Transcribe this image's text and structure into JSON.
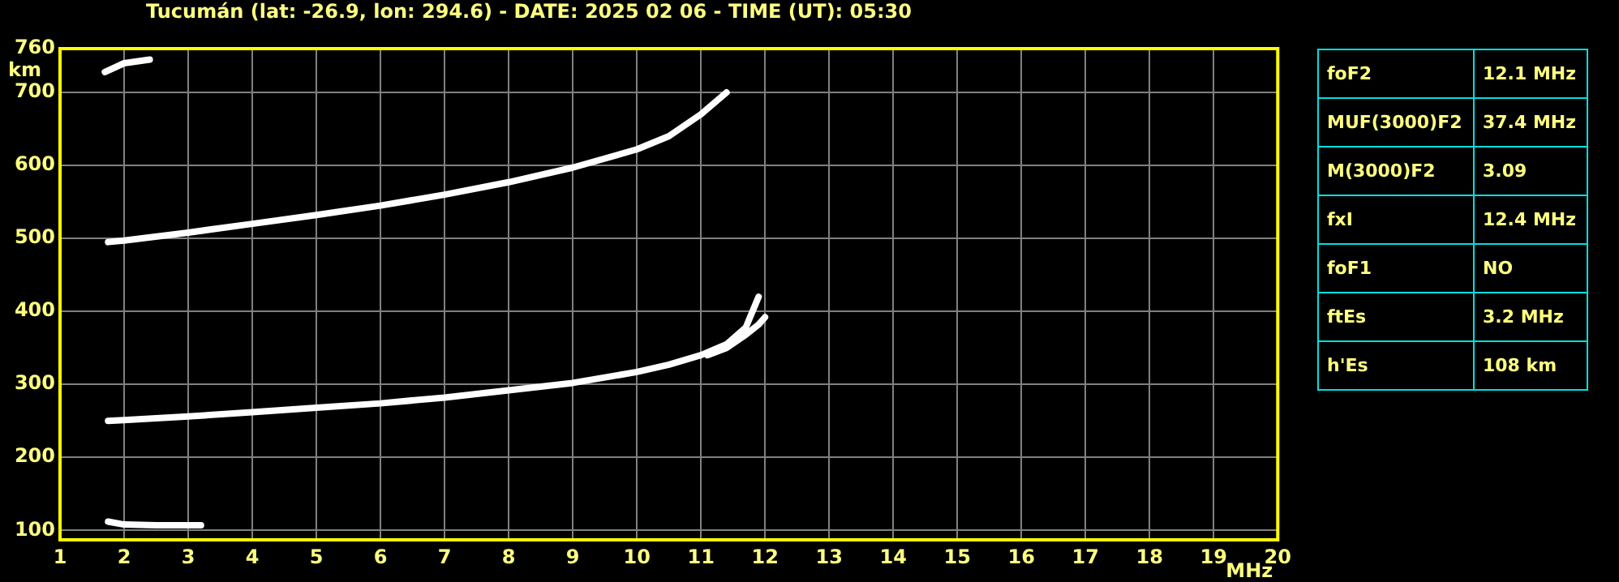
{
  "chart_data": [
    {
      "type": "line",
      "title": "Tucumán (lat: -26.9, lon: 294.6) - DATE: 2025 02 06 - TIME (UT): 05:30",
      "xlabel": "MHz",
      "ylabel": "km",
      "xlim": [
        1,
        20
      ],
      "xticks": [
        1,
        2,
        3,
        4,
        5,
        6,
        7,
        8,
        9,
        10,
        11,
        12,
        13,
        14,
        15,
        16,
        17,
        18,
        19,
        20
      ],
      "ylim": [
        87,
        760
      ],
      "yticks": [
        100,
        200,
        300,
        400,
        500,
        600,
        700,
        760
      ],
      "grid": true,
      "legend": false,
      "marker": "none",
      "line_style": "solid",
      "series": [
        {
          "color": "#ffffff",
          "x": [
            1.75,
            2,
            3,
            4,
            5,
            6,
            7,
            8,
            9,
            10,
            10.5,
            11,
            11.4,
            11.7,
            11.9
          ],
          "values": [
            250,
            251,
            256,
            262,
            268,
            274,
            282,
            292,
            302,
            317,
            327,
            340,
            355,
            378,
            420
          ]
        },
        {
          "color": "#ffffff",
          "x": [
            11.1,
            11.4,
            11.7,
            11.9,
            12
          ],
          "values": [
            340,
            350,
            368,
            382,
            392
          ]
        },
        {
          "color": "#ffffff",
          "x": [
            1.75,
            2,
            3,
            4,
            5,
            6,
            7,
            8,
            9,
            10,
            10.5,
            11,
            11.4
          ],
          "values": [
            495,
            497,
            508,
            520,
            532,
            545,
            560,
            577,
            597,
            622,
            640,
            670,
            700
          ]
        },
        {
          "color": "#ffffff",
          "x": [
            1.75,
            2,
            2.5,
            3.2
          ],
          "values": [
            112,
            108,
            107,
            107
          ]
        },
        {
          "color": "#ffffff",
          "x": [
            1.7,
            2,
            2.4
          ],
          "values": [
            728,
            740,
            745
          ]
        }
      ]
    },
    {
      "type": "other",
      "annotations": [
        "foF2",
        "12.1 MHz",
        "MUF(3000)F2",
        "37.4 MHz",
        "M(3000)F2",
        "3.09",
        "fxI",
        "12.4 MHz",
        "foF1",
        "NO",
        "ftEs",
        "3.2 MHz",
        "h'Es",
        "108 km"
      ]
    }
  ]
}
